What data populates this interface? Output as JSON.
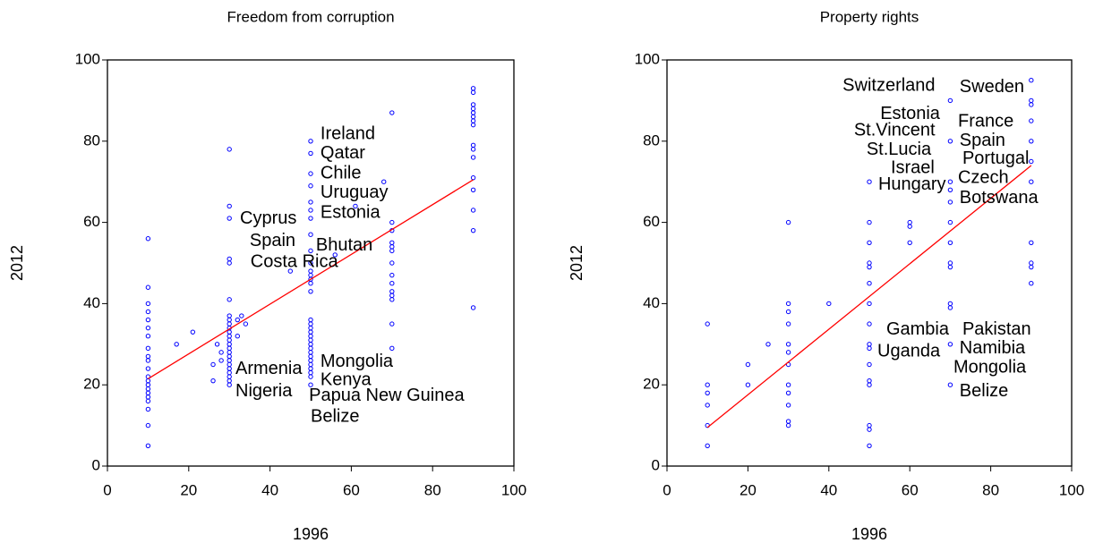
{
  "chart_data": [
    {
      "type": "scatter",
      "title": "Freedom from corruption",
      "xlabel": "1996",
      "ylabel": "2012",
      "xlim": [
        0,
        100
      ],
      "ylim": [
        0,
        100
      ],
      "xticks": [
        0,
        20,
        40,
        60,
        80,
        100
      ],
      "yticks": [
        0,
        20,
        40,
        60,
        80,
        100
      ],
      "series": [
        {
          "type": "scatter",
          "color": "#0000ff",
          "x": [
            10,
            10,
            10,
            10,
            10,
            10,
            10,
            10,
            10,
            10,
            10,
            10,
            10,
            10,
            10,
            10,
            10,
            10,
            10,
            10,
            10,
            17,
            21,
            26,
            26,
            27,
            28,
            28,
            30,
            30,
            30,
            30,
            30,
            30,
            30,
            30,
            30,
            30,
            30,
            30,
            30,
            30,
            30,
            30,
            30,
            30,
            30,
            30,
            30,
            30,
            30,
            30,
            32,
            32,
            33,
            34,
            45,
            50,
            50,
            50,
            50,
            50,
            50,
            50,
            50,
            50,
            50,
            50,
            50,
            50,
            50,
            50,
            50,
            50,
            50,
            50,
            50,
            50,
            50,
            50,
            50,
            50,
            50,
            50,
            50,
            50,
            50,
            50,
            56,
            61,
            68,
            70,
            70,
            70,
            70,
            70,
            70,
            70,
            70,
            70,
            70,
            70,
            70,
            70,
            70,
            90,
            90,
            90,
            90,
            90,
            90,
            90,
            90,
            90,
            90,
            90,
            90,
            90,
            90,
            90,
            90
          ],
          "values": [
            56,
            44,
            40,
            38,
            36,
            34,
            32,
            29,
            27,
            26,
            24,
            22,
            21,
            20,
            19,
            18,
            17,
            16,
            14,
            10,
            5,
            30,
            33,
            25,
            21,
            30,
            28,
            26,
            78,
            64,
            61,
            51,
            50,
            41,
            37,
            36,
            35,
            34,
            33,
            32,
            31,
            30,
            29,
            28,
            27,
            26,
            25,
            24,
            23,
            22,
            21,
            20,
            36,
            32,
            37,
            35,
            48,
            80,
            77,
            72,
            69,
            65,
            63,
            61,
            57,
            53,
            50,
            48,
            47,
            46,
            45,
            43,
            36,
            35,
            34,
            33,
            32,
            31,
            30,
            29,
            28,
            27,
            26,
            25,
            24,
            23,
            22,
            20,
            52,
            64,
            70,
            87,
            60,
            58,
            55,
            54,
            53,
            50,
            47,
            45,
            43,
            42,
            41,
            35,
            29,
            93,
            92,
            89,
            88,
            87,
            86,
            85,
            84,
            79,
            78,
            76,
            71,
            68,
            63,
            58,
            39
          ]
        },
        {
          "type": "line",
          "color": "#ff0000",
          "x": [
            10,
            90
          ],
          "values": [
            21.5,
            70.5
          ]
        }
      ],
      "annotations": [
        {
          "text": "Ireland",
          "x": 52.4,
          "y": 81.7
        },
        {
          "text": "Qatar",
          "x": 52.4,
          "y": 76.9
        },
        {
          "text": "Chile",
          "x": 52.4,
          "y": 72
        },
        {
          "text": "Uruguay",
          "x": 52.4,
          "y": 67.2
        },
        {
          "text": "Estonia",
          "x": 52.4,
          "y": 62.3
        },
        {
          "text": "Cyprus",
          "x": 32.6,
          "y": 60.8
        },
        {
          "text": "Spain",
          "x": 35,
          "y": 55.3
        },
        {
          "text": "Bhutan",
          "x": 51.3,
          "y": 54.2
        },
        {
          "text": "Costa Rica",
          "x": 35.2,
          "y": 50.2
        },
        {
          "text": "Mongolia",
          "x": 52.4,
          "y": 25.6
        },
        {
          "text": "Armenia",
          "x": 31.5,
          "y": 23.8
        },
        {
          "text": "Kenya",
          "x": 52.4,
          "y": 21.1
        },
        {
          "text": "Nigeria",
          "x": 31.5,
          "y": 18.3
        },
        {
          "text": "Papua New Guinea",
          "x": 49.6,
          "y": 17.2
        },
        {
          "text": "Belize",
          "x": 50,
          "y": 12.1
        }
      ]
    },
    {
      "type": "scatter",
      "title": "Property rights",
      "xlabel": "1996",
      "ylabel": "2012",
      "xlim": [
        0,
        100
      ],
      "ylim": [
        0,
        100
      ],
      "xticks": [
        0,
        20,
        40,
        60,
        80,
        100
      ],
      "yticks": [
        0,
        20,
        40,
        60,
        80,
        100
      ],
      "series": [
        {
          "type": "scatter",
          "color": "#0000ff",
          "x": [
            10,
            10,
            10,
            10,
            10,
            10,
            20,
            20,
            25,
            30,
            30,
            30,
            30,
            30,
            30,
            30,
            30,
            30,
            30,
            30,
            30,
            40,
            50,
            50,
            50,
            50,
            50,
            50,
            50,
            50,
            50,
            50,
            50,
            50,
            50,
            50,
            50,
            50,
            60,
            60,
            60,
            70,
            70,
            70,
            70,
            70,
            70,
            70,
            70,
            70,
            70,
            70,
            70,
            70,
            90,
            90,
            90,
            90,
            90,
            90,
            90,
            90,
            90,
            90,
            90
          ],
          "values": [
            35,
            20,
            18,
            15,
            10,
            5,
            25,
            20,
            30,
            60,
            40,
            38,
            35,
            30,
            28,
            25,
            20,
            18,
            15,
            11,
            10,
            40,
            70,
            60,
            55,
            50,
            49,
            45,
            40,
            35,
            30,
            29,
            25,
            21,
            20,
            10,
            9,
            5,
            60,
            59,
            55,
            90,
            80,
            70,
            68,
            65,
            60,
            55,
            50,
            49,
            40,
            39,
            30,
            20,
            95,
            90,
            89,
            85,
            80,
            75,
            70,
            55,
            50,
            49,
            45
          ]
        },
        {
          "type": "line",
          "color": "#ff0000",
          "x": [
            10,
            90
          ],
          "values": [
            9.5,
            74
          ]
        }
      ],
      "annotations": [
        {
          "text": "Switzerland",
          "x": 43.4,
          "y": 93.6
        },
        {
          "text": "Sweden",
          "x": 72.3,
          "y": 93.2
        },
        {
          "text": "Estonia",
          "x": 52.7,
          "y": 86.6
        },
        {
          "text": "France",
          "x": 71.9,
          "y": 84.8
        },
        {
          "text": "St.Vincent",
          "x": 46.2,
          "y": 82.6
        },
        {
          "text": "Spain",
          "x": 72.3,
          "y": 80
        },
        {
          "text": "St.Lucia",
          "x": 49.3,
          "y": 77.8
        },
        {
          "text": "Portugal",
          "x": 73,
          "y": 75.6
        },
        {
          "text": "Israel",
          "x": 55.3,
          "y": 73.3
        },
        {
          "text": "Czech",
          "x": 71.9,
          "y": 70.9
        },
        {
          "text": "Hungary",
          "x": 52.2,
          "y": 69.2
        },
        {
          "text": "Botswana",
          "x": 72.3,
          "y": 65.9
        },
        {
          "text": "Gambia",
          "x": 54.2,
          "y": 33.5
        },
        {
          "text": "Pakistan",
          "x": 73,
          "y": 33.5
        },
        {
          "text": "Uganda",
          "x": 52,
          "y": 28.2
        },
        {
          "text": "Namibia",
          "x": 72.3,
          "y": 28.9
        },
        {
          "text": "Mongolia",
          "x": 70.8,
          "y": 24.2
        },
        {
          "text": "Belize",
          "x": 72.3,
          "y": 18.3
        }
      ]
    }
  ]
}
